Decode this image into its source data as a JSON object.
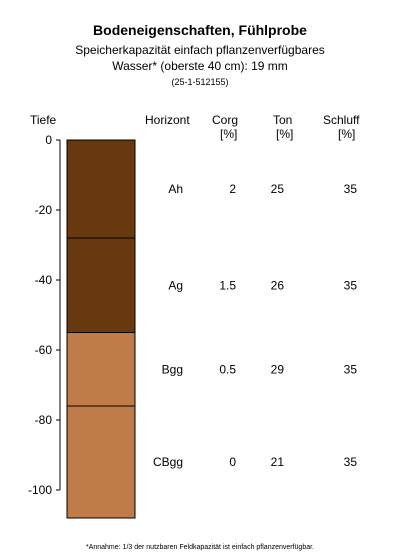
{
  "title": "Bodeneigenschaften, Fühlprobe",
  "subtitle_line1": "Speicherkapazität einfach pflanzenverfügbares",
  "subtitle_line2": "Wasser* (oberste 40 cm): 19 mm",
  "sample_id": "(25-1-512155)",
  "footnote": "*Annahme: 1/3 der nutzbaren Feldkapazität ist einfach pflanzenverfügbar.",
  "headers": {
    "depth": "Tiefe",
    "horizon": "Horizont",
    "corg": "Corg",
    "corg_unit": "[%]",
    "ton": "Ton",
    "ton_unit": "[%]",
    "schluff": "Schluff",
    "schluff_unit": "[%]"
  },
  "chart_data": {
    "type": "table",
    "ylabel": "Tiefe",
    "ylim": [
      -108,
      0
    ],
    "yticks": [
      0,
      -20,
      -40,
      -60,
      -80,
      -100
    ],
    "columns": [
      "Horizont",
      "Corg [%]",
      "Ton [%]",
      "Schluff [%]"
    ],
    "rows": [
      {
        "horizon": "Ah",
        "top": 0,
        "bottom": -28,
        "corg": "2",
        "ton": "25",
        "schluff": "35",
        "color": "#68380e"
      },
      {
        "horizon": "Ag",
        "top": -28,
        "bottom": -55,
        "corg": "1.5",
        "ton": "26",
        "schluff": "35",
        "color": "#68380e"
      },
      {
        "horizon": "Bgg",
        "top": -55,
        "bottom": -76,
        "corg": "0.5",
        "ton": "29",
        "schluff": "35",
        "color": "#c07c48"
      },
      {
        "horizon": "CBgg",
        "top": -76,
        "bottom": -108,
        "corg": "0",
        "ton": "21",
        "schluff": "35",
        "color": "#c07c48"
      }
    ]
  }
}
